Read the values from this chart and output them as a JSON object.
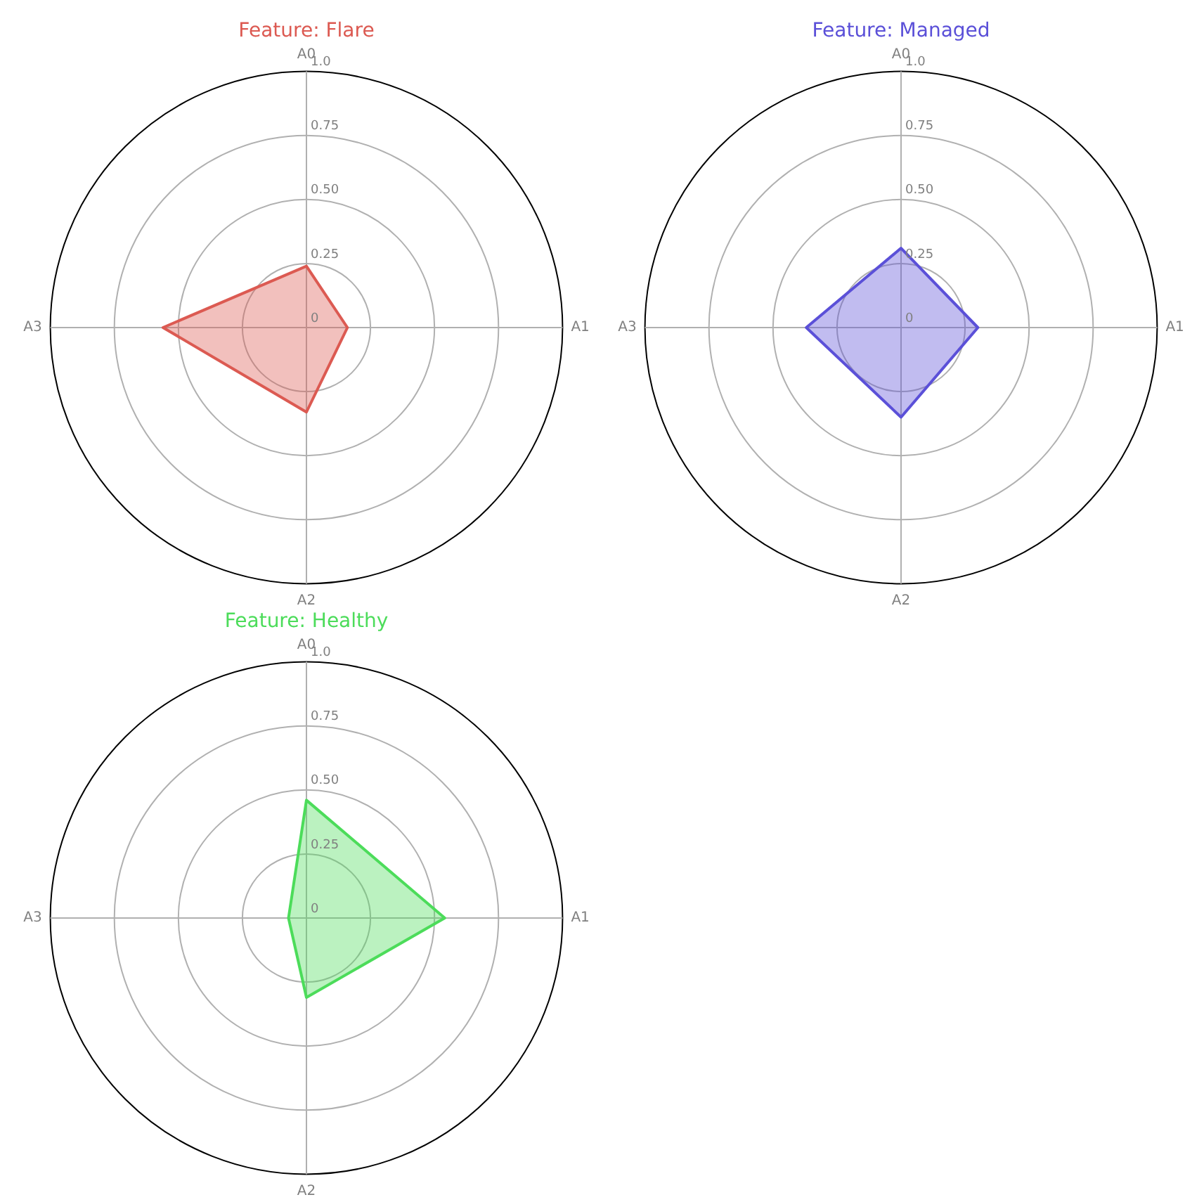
{
  "chart_data": [
    {
      "type": "radar",
      "title": "Feature: Flare",
      "categories": [
        "A0",
        "A1",
        "A2",
        "A3"
      ],
      "series": [
        {
          "color": "#dc5a52",
          "values": [
            0.24,
            0.16,
            0.33,
            0.56
          ]
        }
      ],
      "ylim": [
        0,
        1
      ],
      "yticks": [
        {
          "value": 0,
          "label": "0"
        },
        {
          "value": 0.25,
          "label": "0.25"
        },
        {
          "value": 0.5,
          "label": "0.50"
        },
        {
          "value": 0.75,
          "label": "0.75"
        },
        {
          "value": 1,
          "label": "1.0"
        }
      ],
      "grid": true,
      "marker": "none"
    },
    {
      "type": "radar",
      "title": "Feature: Managed",
      "categories": [
        "A0",
        "A1",
        "A2",
        "A3"
      ],
      "series": [
        {
          "color": "#5b50d8",
          "values": [
            0.31,
            0.3,
            0.35,
            0.37
          ]
        }
      ],
      "ylim": [
        0,
        1
      ],
      "yticks": [
        {
          "value": 0,
          "label": "0"
        },
        {
          "value": 0.25,
          "label": "0.25"
        },
        {
          "value": 0.5,
          "label": "0.50"
        },
        {
          "value": 0.75,
          "label": "0.75"
        },
        {
          "value": 1,
          "label": "1.0"
        }
      ],
      "grid": true,
      "marker": "none"
    },
    {
      "type": "radar",
      "title": "Feature: Healthy",
      "categories": [
        "A0",
        "A1",
        "A2",
        "A3"
      ],
      "series": [
        {
          "color": "#4cdc5a",
          "values": [
            0.46,
            0.54,
            0.31,
            0.07
          ]
        }
      ],
      "ylim": [
        0,
        1
      ],
      "yticks": [
        {
          "value": 0,
          "label": "0"
        },
        {
          "value": 0.25,
          "label": "0.25"
        },
        {
          "value": 0.5,
          "label": "0.50"
        },
        {
          "value": 0.75,
          "label": "0.75"
        },
        {
          "value": 1,
          "label": "1.0"
        }
      ],
      "grid": true,
      "marker": "none"
    }
  ]
}
